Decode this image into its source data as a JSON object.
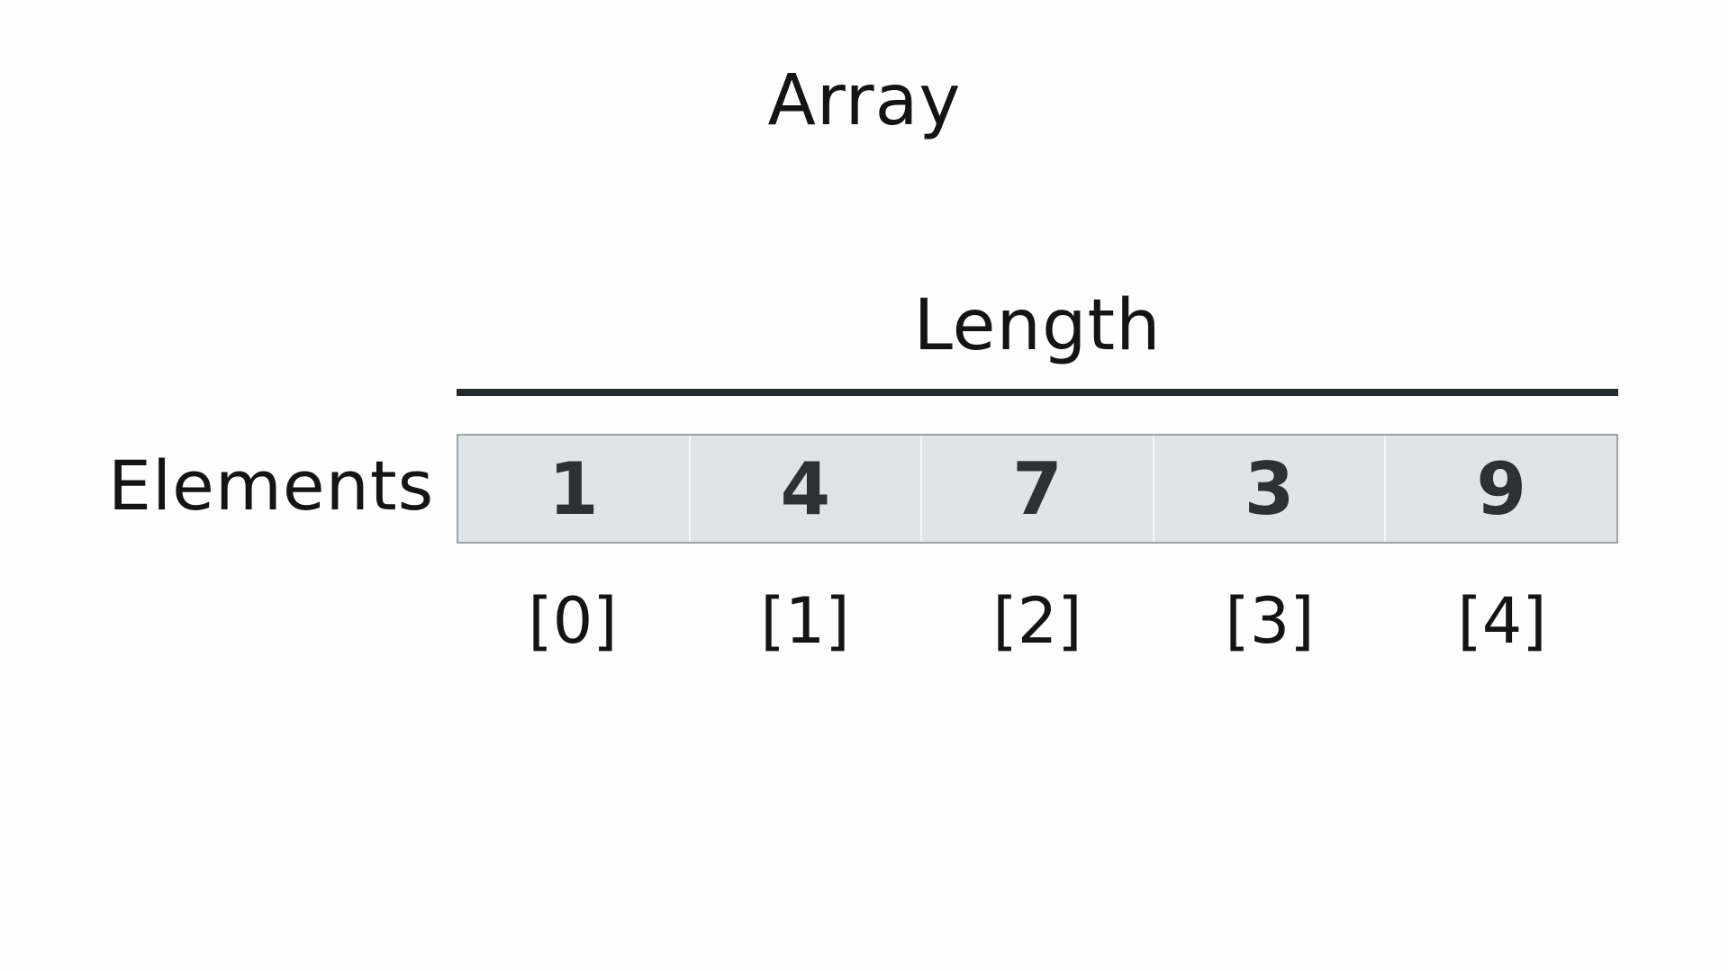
{
  "title": "Array",
  "length_label": "Length",
  "row_label": "Elements",
  "elements": [
    "1",
    "4",
    "7",
    "3",
    "9"
  ],
  "indices": [
    "[0]",
    "[1]",
    "[2]",
    "[3]",
    "[4]"
  ],
  "colors": {
    "cell_fill": "#dfe4e6",
    "cell_border": "#9ea3a6",
    "text": "#141414",
    "value_text": "#2b3134",
    "length_bar": "#262a2d"
  }
}
